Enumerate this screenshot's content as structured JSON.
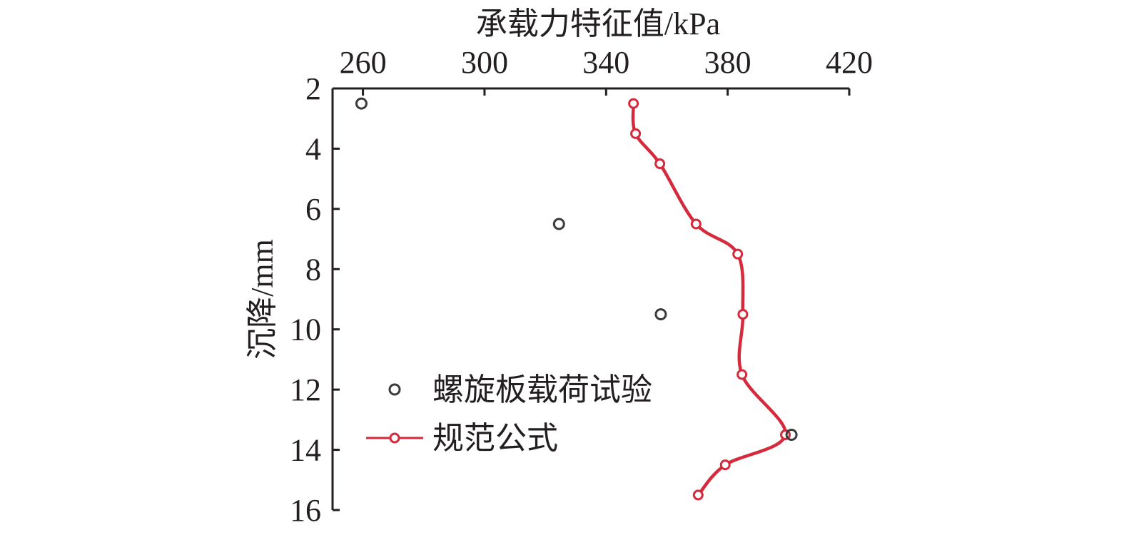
{
  "chart_data": {
    "type": "scatter",
    "xlabel": "承载力特征值/kPa",
    "ylabel": "沉降/mm",
    "xlim": [
      250,
      420
    ],
    "ylim": [
      2,
      16
    ],
    "y_inverted": true,
    "x_axis_position": "top",
    "x_ticks": [
      260,
      300,
      340,
      380,
      420
    ],
    "y_ticks": [
      2,
      4,
      6,
      8,
      10,
      12,
      14,
      16
    ],
    "legend_position": "bottom-left",
    "series": [
      {
        "name": "螺旋板载荷试验",
        "style": "markers",
        "color": "#3a3a3a",
        "points": [
          {
            "x": 259.5,
            "y": 2.5
          },
          {
            "x": 324.5,
            "y": 6.5
          },
          {
            "x": 358,
            "y": 9.5
          },
          {
            "x": 401,
            "y": 13.5
          }
        ]
      },
      {
        "name": "规范公式",
        "style": "line+markers",
        "color": "#d42a3c",
        "points": [
          {
            "x": 349,
            "y": 2.5
          },
          {
            "x": 349.7,
            "y": 3.5
          },
          {
            "x": 357.7,
            "y": 4.5
          },
          {
            "x": 369.6,
            "y": 6.5
          },
          {
            "x": 383.3,
            "y": 7.5
          },
          {
            "x": 385,
            "y": 9.5
          },
          {
            "x": 384.7,
            "y": 11.5
          },
          {
            "x": 399,
            "y": 13.5
          },
          {
            "x": 379.2,
            "y": 14.5
          },
          {
            "x": 370.3,
            "y": 15.5
          }
        ]
      }
    ]
  }
}
